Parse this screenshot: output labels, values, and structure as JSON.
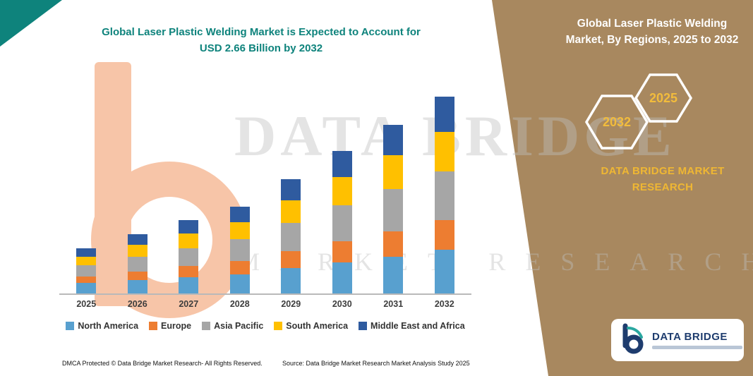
{
  "left_section": {
    "title": {
      "line1": "Global Laser Plastic Welding Market is Expected to Account for",
      "line2": "USD 2.66 Billion by 2032"
    },
    "footer": {
      "dmca": "DMCA Protected © Data Bridge Market Research-  All Rights Reserved.",
      "source": "Source: Data Bridge Market Research  Market Analysis Study 2025"
    }
  },
  "watermark": {
    "line1": "DATA BRIDGE",
    "line2": "MARKET RESEARCH"
  },
  "right_panel": {
    "title": {
      "line1": "Global Laser Plastic Welding",
      "line2": "Market, By Regions, 2025 to 2032"
    },
    "hexagon_back_label": "2032",
    "hexagon_front_label": "2025",
    "brand": {
      "line1": "DATA BRIDGE MARKET",
      "line2": "RESEARCH"
    },
    "logo_name": "DATA BRIDGE"
  },
  "colors": {
    "teal": "#0E837C",
    "brown_panel": "#A8885F",
    "gold": "#EFB733",
    "navy": "#1E3C6E"
  },
  "chart_data": {
    "type": "bar",
    "stacked": true,
    "title": "Global Laser Plastic Welding Market is Expected to Account for USD 2.66 Billion by 2032",
    "units": "USD Billion",
    "xlabel": "",
    "ylabel": "",
    "ylim": [
      0,
      2.8
    ],
    "grid": false,
    "legend_position": "bottom",
    "categories": [
      "2025",
      "2026",
      "2027",
      "2028",
      "2029",
      "2030",
      "2031",
      "2032"
    ],
    "series": [
      {
        "name": "North America",
        "color": "#58A0CF",
        "values": [
          0.14,
          0.18,
          0.22,
          0.26,
          0.34,
          0.42,
          0.5,
          0.59
        ]
      },
      {
        "name": "Europe",
        "color": "#ED7D31",
        "values": [
          0.09,
          0.12,
          0.15,
          0.18,
          0.23,
          0.29,
          0.34,
          0.4
        ]
      },
      {
        "name": "Asia Pacific",
        "color": "#A6A6A6",
        "values": [
          0.15,
          0.2,
          0.24,
          0.29,
          0.38,
          0.48,
          0.57,
          0.66
        ]
      },
      {
        "name": "South America",
        "color": "#FFC000",
        "values": [
          0.12,
          0.16,
          0.2,
          0.23,
          0.31,
          0.38,
          0.46,
          0.53
        ]
      },
      {
        "name": "Middle East and Africa",
        "color": "#2F5B9F",
        "values": [
          0.11,
          0.14,
          0.18,
          0.21,
          0.28,
          0.35,
          0.41,
          0.48
        ]
      }
    ],
    "totals": [
      0.61,
      0.8,
      0.99,
      1.17,
      1.54,
      1.92,
      2.28,
      2.66
    ]
  }
}
